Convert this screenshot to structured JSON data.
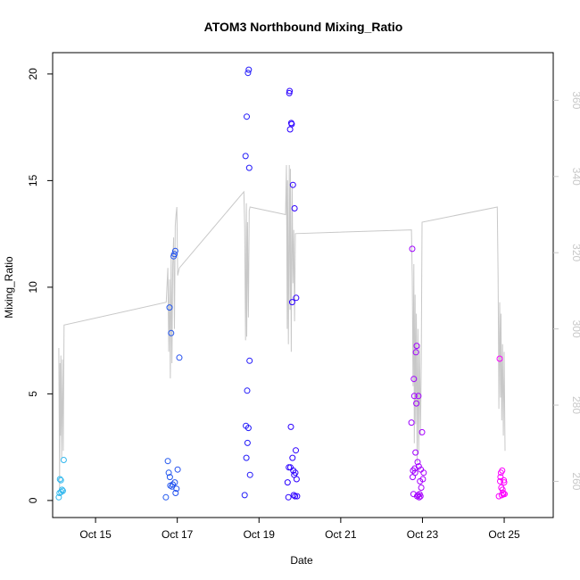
{
  "chart_data": {
    "type": "scatter",
    "title": "ATOM3 Northbound Mixing_Ratio",
    "xlabel": "Date",
    "ylabel": "Mixing_Ratio",
    "x_ticks": [
      {
        "x": 14.75,
        "label": "Oct 15"
      },
      {
        "x": 16.75,
        "label": "Oct 17"
      },
      {
        "x": 18.75,
        "label": "Oct 19"
      },
      {
        "x": 20.75,
        "label": "Oct 21"
      },
      {
        "x": 22.75,
        "label": "Oct 23"
      },
      {
        "x": 24.75,
        "label": "Oct 25"
      }
    ],
    "xlim": [
      13.7,
      25.95
    ],
    "ylim": [
      -0.8,
      21.0
    ],
    "y_ticks": [
      0,
      5,
      10,
      15,
      20
    ],
    "y2lim": [
      250.5,
      372.5
    ],
    "y2_ticks": [
      260,
      280,
      300,
      320,
      340,
      360
    ],
    "grid": false,
    "series": [
      {
        "type": "scatter",
        "points": [
          {
            "x": 13.85,
            "y": 0.15
          },
          {
            "x": 13.87,
            "y": 0.35
          },
          {
            "x": 13.88,
            "y": 1.0
          },
          {
            "x": 13.9,
            "y": 0.95
          },
          {
            "x": 13.91,
            "y": 0.4
          },
          {
            "x": 13.93,
            "y": 0.5
          },
          {
            "x": 13.95,
            "y": 0.45
          },
          {
            "x": 13.97,
            "y": 1.9
          },
          {
            "x": 16.47,
            "y": 0.15
          },
          {
            "x": 16.52,
            "y": 1.85
          },
          {
            "x": 16.54,
            "y": 1.3
          },
          {
            "x": 16.56,
            "y": 9.05
          },
          {
            "x": 16.57,
            "y": 1.1
          },
          {
            "x": 16.58,
            "y": 0.7
          },
          {
            "x": 16.6,
            "y": 7.85
          },
          {
            "x": 16.62,
            "y": 0.65
          },
          {
            "x": 16.64,
            "y": 0.75
          },
          {
            "x": 16.66,
            "y": 11.45
          },
          {
            "x": 16.68,
            "y": 11.55
          },
          {
            "x": 16.69,
            "y": 0.85
          },
          {
            "x": 16.7,
            "y": 11.7
          },
          {
            "x": 16.71,
            "y": 0.35
          },
          {
            "x": 16.73,
            "y": 0.55
          },
          {
            "x": 16.76,
            "y": 1.45
          },
          {
            "x": 16.8,
            "y": 6.7
          },
          {
            "x": 18.4,
            "y": 0.25
          },
          {
            "x": 18.42,
            "y": 16.15
          },
          {
            "x": 18.43,
            "y": 3.5
          },
          {
            "x": 18.44,
            "y": 2.0
          },
          {
            "x": 18.45,
            "y": 18.0
          },
          {
            "x": 18.46,
            "y": 5.15
          },
          {
            "x": 18.47,
            "y": 2.7
          },
          {
            "x": 18.48,
            "y": 20.05
          },
          {
            "x": 18.49,
            "y": 3.4
          },
          {
            "x": 18.5,
            "y": 20.2
          },
          {
            "x": 18.51,
            "y": 15.6
          },
          {
            "x": 18.52,
            "y": 6.55
          },
          {
            "x": 18.53,
            "y": 1.2
          },
          {
            "x": 19.45,
            "y": 0.85
          },
          {
            "x": 19.47,
            "y": 0.15
          },
          {
            "x": 19.48,
            "y": 1.55
          },
          {
            "x": 19.49,
            "y": 19.1
          },
          {
            "x": 19.5,
            "y": 19.2
          },
          {
            "x": 19.51,
            "y": 17.4
          },
          {
            "x": 19.52,
            "y": 1.55
          },
          {
            "x": 19.53,
            "y": 3.45
          },
          {
            "x": 19.54,
            "y": 17.7
          },
          {
            "x": 19.55,
            "y": 17.65
          },
          {
            "x": 19.56,
            "y": 9.3
          },
          {
            "x": 19.57,
            "y": 2.0
          },
          {
            "x": 19.58,
            "y": 14.8
          },
          {
            "x": 19.59,
            "y": 1.4
          },
          {
            "x": 19.6,
            "y": 0.25
          },
          {
            "x": 19.61,
            "y": 1.2
          },
          {
            "x": 19.62,
            "y": 13.7
          },
          {
            "x": 19.63,
            "y": 0.2
          },
          {
            "x": 19.64,
            "y": 1.3
          },
          {
            "x": 19.65,
            "y": 2.35
          },
          {
            "x": 19.66,
            "y": 9.5
          },
          {
            "x": 19.67,
            "y": 1.0
          },
          {
            "x": 19.68,
            "y": 0.2
          },
          {
            "x": 22.48,
            "y": 3.65
          },
          {
            "x": 22.5,
            "y": 11.8
          },
          {
            "x": 22.51,
            "y": 1.1
          },
          {
            "x": 22.52,
            "y": 1.4
          },
          {
            "x": 22.53,
            "y": 0.3
          },
          {
            "x": 22.54,
            "y": 5.7
          },
          {
            "x": 22.55,
            "y": 4.9
          },
          {
            "x": 22.56,
            "y": 1.5
          },
          {
            "x": 22.57,
            "y": 1.3
          },
          {
            "x": 22.58,
            "y": 2.25
          },
          {
            "x": 22.59,
            "y": 6.95
          },
          {
            "x": 22.6,
            "y": 4.55
          },
          {
            "x": 22.61,
            "y": 7.25
          },
          {
            "x": 22.62,
            "y": 0.2
          },
          {
            "x": 22.63,
            "y": 1.8
          },
          {
            "x": 22.64,
            "y": 0.25
          },
          {
            "x": 22.65,
            "y": 4.9
          },
          {
            "x": 22.66,
            "y": 1.6
          },
          {
            "x": 22.67,
            "y": 0.15
          },
          {
            "x": 22.68,
            "y": 0.3
          },
          {
            "x": 22.69,
            "y": 0.9
          },
          {
            "x": 22.7,
            "y": 0.2
          },
          {
            "x": 22.71,
            "y": 1.45
          },
          {
            "x": 22.72,
            "y": 0.6
          },
          {
            "x": 22.74,
            "y": 3.2
          },
          {
            "x": 22.76,
            "y": 1.0
          },
          {
            "x": 22.78,
            "y": 1.3
          },
          {
            "x": 24.62,
            "y": 0.2
          },
          {
            "x": 24.64,
            "y": 6.65
          },
          {
            "x": 24.65,
            "y": 0.9
          },
          {
            "x": 24.66,
            "y": 1.1
          },
          {
            "x": 24.67,
            "y": 1.3
          },
          {
            "x": 24.68,
            "y": 0.6
          },
          {
            "x": 24.69,
            "y": 0.25
          },
          {
            "x": 24.7,
            "y": 1.4
          },
          {
            "x": 24.71,
            "y": 0.5
          },
          {
            "x": 24.72,
            "y": 0.35
          },
          {
            "x": 24.73,
            "y": 0.3
          },
          {
            "x": 24.74,
            "y": 0.95
          },
          {
            "x": 24.75,
            "y": 0.85
          },
          {
            "x": 24.76,
            "y": 0.3
          }
        ]
      },
      {
        "type": "line",
        "axis": "right",
        "points": [
          {
            "x": 13.85,
            "y": 295
          },
          {
            "x": 13.87,
            "y": 258
          },
          {
            "x": 13.88,
            "y": 291
          },
          {
            "x": 13.89,
            "y": 272
          },
          {
            "x": 13.9,
            "y": 293
          },
          {
            "x": 13.92,
            "y": 266
          },
          {
            "x": 13.94,
            "y": 292
          },
          {
            "x": 13.96,
            "y": 268
          },
          {
            "x": 13.98,
            "y": 301
          },
          {
            "x": 16.48,
            "y": 307
          },
          {
            "x": 16.52,
            "y": 316
          },
          {
            "x": 16.54,
            "y": 294
          },
          {
            "x": 16.56,
            "y": 313
          },
          {
            "x": 16.58,
            "y": 287
          },
          {
            "x": 16.6,
            "y": 320
          },
          {
            "x": 16.62,
            "y": 291
          },
          {
            "x": 16.64,
            "y": 317
          },
          {
            "x": 16.66,
            "y": 324
          },
          {
            "x": 16.68,
            "y": 300
          },
          {
            "x": 16.7,
            "y": 327
          },
          {
            "x": 16.72,
            "y": 330
          },
          {
            "x": 16.74,
            "y": 332
          },
          {
            "x": 16.76,
            "y": 314
          },
          {
            "x": 16.8,
            "y": 316
          },
          {
            "x": 18.38,
            "y": 336
          },
          {
            "x": 18.4,
            "y": 327
          },
          {
            "x": 18.42,
            "y": 297
          },
          {
            "x": 18.44,
            "y": 333
          },
          {
            "x": 18.45,
            "y": 298
          },
          {
            "x": 18.47,
            "y": 328
          },
          {
            "x": 18.49,
            "y": 303
          },
          {
            "x": 18.51,
            "y": 331
          },
          {
            "x": 18.53,
            "y": 332
          },
          {
            "x": 19.4,
            "y": 330
          },
          {
            "x": 19.42,
            "y": 343
          },
          {
            "x": 19.44,
            "y": 300
          },
          {
            "x": 19.45,
            "y": 339
          },
          {
            "x": 19.47,
            "y": 296
          },
          {
            "x": 19.49,
            "y": 343
          },
          {
            "x": 19.51,
            "y": 305
          },
          {
            "x": 19.52,
            "y": 342
          },
          {
            "x": 19.54,
            "y": 294
          },
          {
            "x": 19.56,
            "y": 338
          },
          {
            "x": 19.58,
            "y": 312
          },
          {
            "x": 19.6,
            "y": 326
          },
          {
            "x": 19.62,
            "y": 302
          },
          {
            "x": 19.64,
            "y": 325
          },
          {
            "x": 22.48,
            "y": 326
          },
          {
            "x": 22.5,
            "y": 314
          },
          {
            "x": 22.52,
            "y": 285
          },
          {
            "x": 22.54,
            "y": 317
          },
          {
            "x": 22.55,
            "y": 270
          },
          {
            "x": 22.57,
            "y": 309
          },
          {
            "x": 22.58,
            "y": 275
          },
          {
            "x": 22.6,
            "y": 304
          },
          {
            "x": 22.62,
            "y": 265
          },
          {
            "x": 22.64,
            "y": 300
          },
          {
            "x": 22.66,
            "y": 268
          },
          {
            "x": 22.68,
            "y": 296
          },
          {
            "x": 22.7,
            "y": 272
          },
          {
            "x": 22.72,
            "y": 291
          },
          {
            "x": 22.74,
            "y": 328
          },
          {
            "x": 24.58,
            "y": 332
          },
          {
            "x": 24.6,
            "y": 314
          },
          {
            "x": 24.62,
            "y": 279
          },
          {
            "x": 24.64,
            "y": 307
          },
          {
            "x": 24.66,
            "y": 282
          },
          {
            "x": 24.67,
            "y": 304
          },
          {
            "x": 24.69,
            "y": 276
          },
          {
            "x": 24.71,
            "y": 296
          },
          {
            "x": 24.73,
            "y": 272
          },
          {
            "x": 24.75,
            "y": 294
          },
          {
            "x": 24.77,
            "y": 268
          }
        ]
      }
    ]
  },
  "colors": {
    "line": "#c8c8c8",
    "axis": "#000000",
    "right_axis": "#c8c8c8",
    "points_gradient": [
      "#33bbee",
      "#2255ee",
      "#2200ff",
      "#8a00ff",
      "#ff00ff"
    ]
  }
}
